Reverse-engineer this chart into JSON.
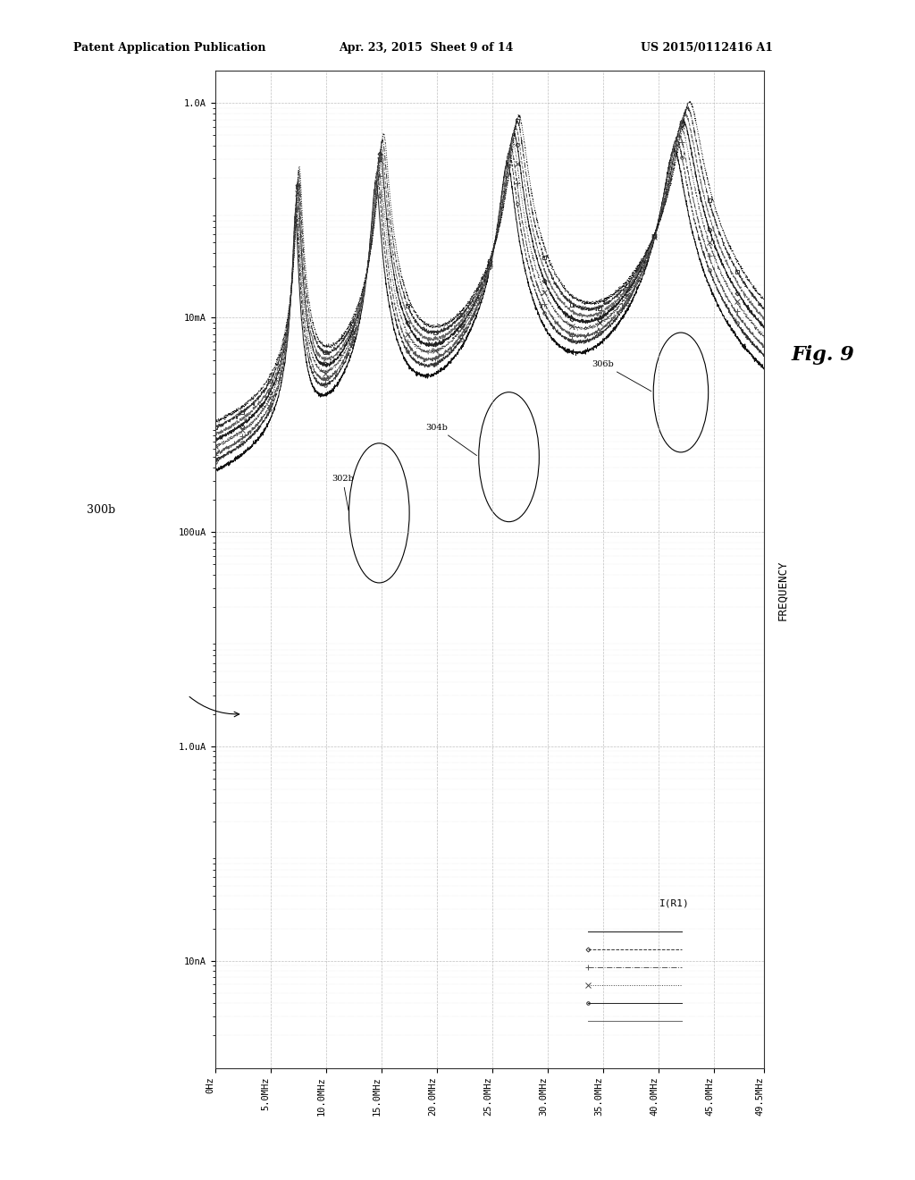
{
  "header_left": "Patent Application Publication",
  "header_mid": "Apr. 23, 2015  Sheet 9 of 14",
  "header_right": "US 2015/0112416 A1",
  "fig_label": "Fig. 9",
  "freq_label": "FREQUENCY",
  "legend_label": "I(R1)",
  "ann_300b": "300b",
  "ann_302b": "302b",
  "ann_304b": "304b",
  "ann_306b": "306b",
  "x_ticks": [
    0,
    5000000,
    10000000,
    15000000,
    20000000,
    25000000,
    30000000,
    35000000,
    40000000,
    45000000,
    49500000
  ],
  "x_tick_labels": [
    "0Hz",
    "5.0MHz",
    "10.0MHz",
    "15.0MHz",
    "20.0MHz",
    "25.0MHz",
    "30.0MHz",
    "35.0MHz",
    "40.0MHz",
    "45.0MHz",
    "49.5MHz"
  ],
  "y_ticks": [
    1e-08,
    1e-06,
    0.0001,
    0.01,
    1.0
  ],
  "y_tick_labels": [
    "10nA",
    "1.0uA",
    "100uA",
    "10mA",
    "1.0A"
  ],
  "xlim": [
    0,
    49500000
  ],
  "ylim_log_min": -9,
  "ylim_log_max": 0.301,
  "background_color": "#ffffff",
  "grid_color": "#b0b0b0",
  "line_styles": [
    "-",
    "--",
    "-.",
    ":",
    "-",
    "--",
    "-.",
    ":"
  ],
  "line_colors": [
    "#111111",
    "#333333",
    "#555555",
    "#444444",
    "#222222",
    "#666666",
    "#333333",
    "#111111"
  ],
  "markers": [
    "none",
    "o",
    "+",
    "x",
    "D",
    "none",
    "s",
    "none"
  ],
  "marker_sizes": [
    0,
    2.5,
    4,
    4,
    2.5,
    0,
    2.5,
    0
  ]
}
